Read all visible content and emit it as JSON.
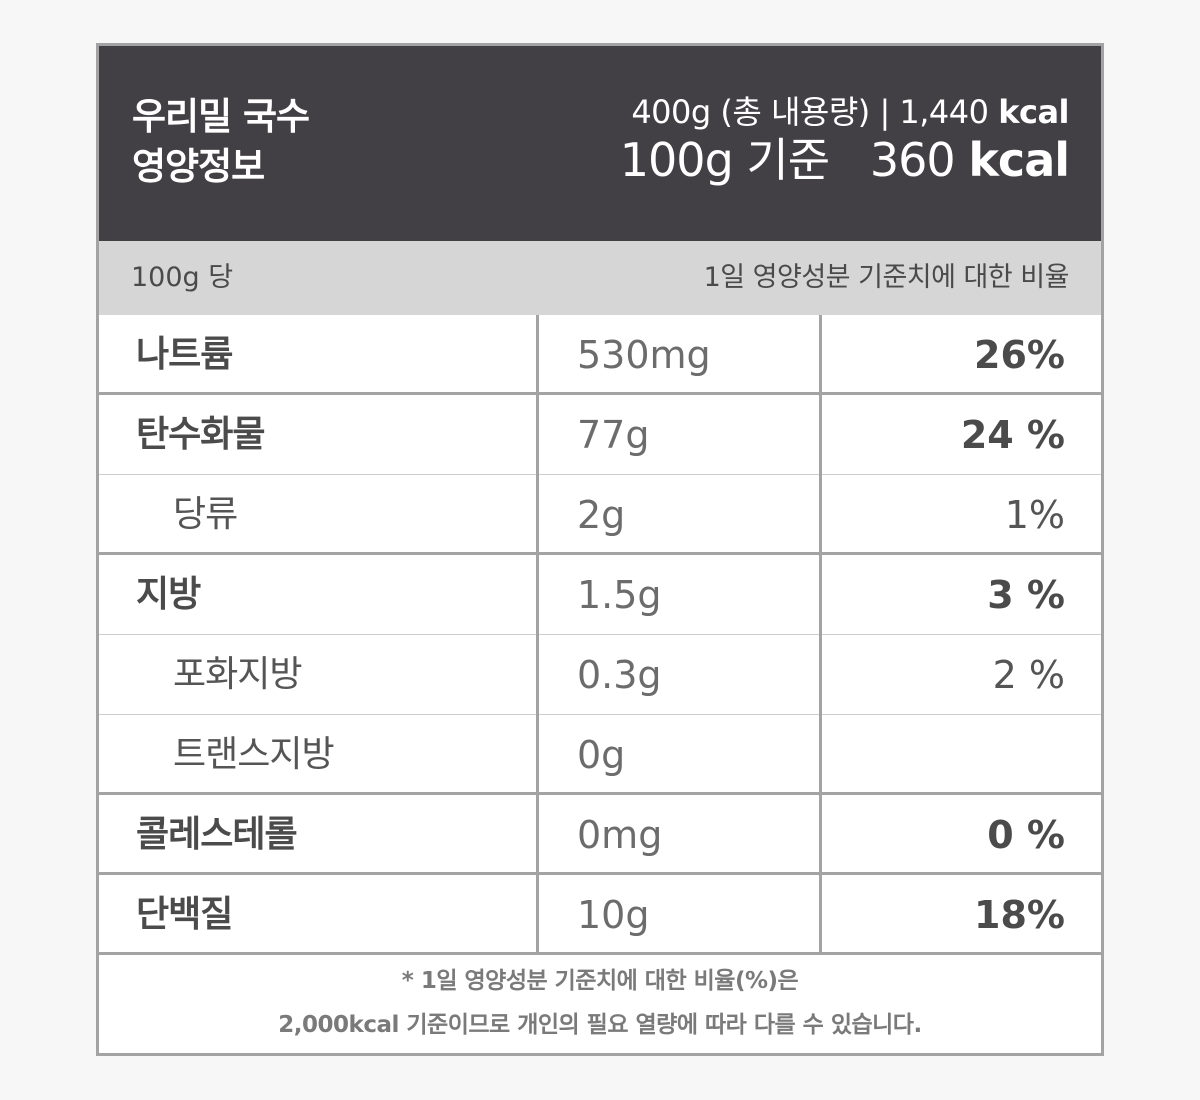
{
  "header": {
    "product_line1": "우리밀 국수",
    "product_line2": "영양정보",
    "total_label": "400g (총 내용량) | 1,440",
    "total_unit": "kcal",
    "per100_label": "100g 기준   360",
    "per100_unit": "kcal"
  },
  "subheader": {
    "left": "100g 당",
    "right": "1일 영양성분 기준치에 대한 비율"
  },
  "rows": [
    {
      "name": "나트륨",
      "amount": "530mg",
      "percent": "26%"
    },
    {
      "name": "탄수화물",
      "amount": "77g",
      "percent": "24 %"
    },
    {
      "name": "당류",
      "amount": "2g",
      "percent": "1%"
    },
    {
      "name": "지방",
      "amount": "1.5g",
      "percent": "3 %"
    },
    {
      "name": "포화지방",
      "amount": "0.3g",
      "percent": "2 %"
    },
    {
      "name": "트랜스지방",
      "amount": "0g",
      "percent": ""
    },
    {
      "name": "콜레스테롤",
      "amount": "0mg",
      "percent": "0 %"
    },
    {
      "name": "단백질",
      "amount": "10g",
      "percent": "18%"
    }
  ],
  "footnote": {
    "line1": "* 1일 영양성분 기준치에 대한 비율(%)은",
    "line2": "2,000kcal 기준이므로 개인의 필요 열량에 따라 다를 수 있습니다."
  }
}
